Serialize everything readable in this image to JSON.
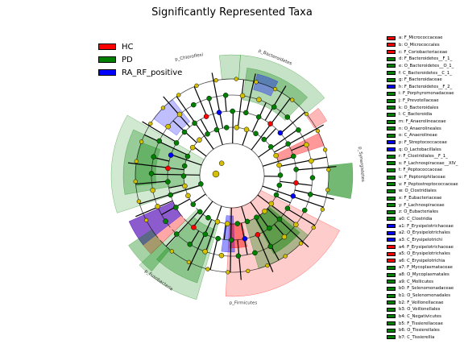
{
  "title": "Significantly Represented Taxa",
  "colors": {
    "HC": "#ff0000",
    "PD": "#008000",
    "RA_RF_positive": "#0000ff",
    "nonsignificant": "#d4c000"
  },
  "legend": [
    {
      "label": "HC",
      "color": "#ff0000"
    },
    {
      "label": "PD",
      "color": "#008000"
    },
    {
      "label": "RA_RF_positive",
      "color": "#0000ff"
    }
  ],
  "chart_data": {
    "type": "cladogram",
    "groups": [
      "HC",
      "PD",
      "RA_RF_positive"
    ],
    "clade_labels": [
      {
        "text": "p_Chloroflexi",
        "group": "PD"
      },
      {
        "text": "p_Bacteroidetes",
        "group": "PD"
      },
      {
        "text": "p_Synergistetes",
        "group": "PD"
      },
      {
        "text": "p_Firmicutes",
        "group": "HC"
      },
      {
        "text": "p_Fusobacteria",
        "group": "PD"
      }
    ],
    "taxa": [
      {
        "text": "a: F_Micrococcaceae",
        "group": "HC"
      },
      {
        "text": "b: O_Micrococcales",
        "group": "HC"
      },
      {
        "text": "c: F_Coriobacteriaceae",
        "group": "HC"
      },
      {
        "text": "d: F_Bacteroidetes__F_1_",
        "group": "PD"
      },
      {
        "text": "e: O_Bacteroidetes__O_1_",
        "group": "PD"
      },
      {
        "text": "f: C_Bacteroidetes__C_1_",
        "group": "PD"
      },
      {
        "text": "g: F_Bacteroidaceae",
        "group": "PD"
      },
      {
        "text": "h: F_Bacteroidetes__F_2_",
        "group": "RA_RF_positive"
      },
      {
        "text": "i: F_Porphyromonadaceae",
        "group": "PD"
      },
      {
        "text": "j: F_Prevotellaceae",
        "group": "PD"
      },
      {
        "text": "k: O_Bacteroidales",
        "group": "PD"
      },
      {
        "text": "l: C_Bacteroidia",
        "group": "PD"
      },
      {
        "text": "m: F_Anaerolineaceae",
        "group": "PD"
      },
      {
        "text": "n: O_Anaerolineales",
        "group": "PD"
      },
      {
        "text": "o: C_Anaerolineae",
        "group": "PD"
      },
      {
        "text": "p: F_Streptococcaceae",
        "group": "RA_RF_positive"
      },
      {
        "text": "q: O_Lactobacillales",
        "group": "RA_RF_positive"
      },
      {
        "text": "r: F_Clostridiales__F_1_",
        "group": "PD"
      },
      {
        "text": "s: F_Lachnospiraceae__XIV_",
        "group": "PD"
      },
      {
        "text": "t: F_Peptococcaceae",
        "group": "PD"
      },
      {
        "text": "u: F_Peptoniphilaceae",
        "group": "PD"
      },
      {
        "text": "v: F_Peptostreptococcaceae",
        "group": "PD"
      },
      {
        "text": "w: O_Clostridiales",
        "group": "PD"
      },
      {
        "text": "x: F_Eubacteriaceae",
        "group": "PD"
      },
      {
        "text": "y: F_Lachnospiraceae",
        "group": "PD"
      },
      {
        "text": "z: O_Eubacteriales",
        "group": "PD"
      },
      {
        "text": "a0: C_Clostridia",
        "group": "PD"
      },
      {
        "text": "a1: F_Erysipelotrichaceae",
        "group": "RA_RF_positive"
      },
      {
        "text": "a2: O_Erysipelotrichales",
        "group": "RA_RF_positive"
      },
      {
        "text": "a3: C_Erysipelotrichi",
        "group": "RA_RF_positive"
      },
      {
        "text": "a4: F_Erysipelotrichaceae",
        "group": "HC"
      },
      {
        "text": "a5: O_Erysipelotrichales",
        "group": "HC"
      },
      {
        "text": "a6: C_Erysipelotrichia",
        "group": "HC"
      },
      {
        "text": "a7: F_Mycoplasmataceae",
        "group": "PD"
      },
      {
        "text": "a8: O_Mycoplasmatales",
        "group": "PD"
      },
      {
        "text": "a9: C_Mollicutes",
        "group": "PD"
      },
      {
        "text": "b0: F_Selenomonadaceae",
        "group": "PD"
      },
      {
        "text": "b1: O_Selenomonadales",
        "group": "PD"
      },
      {
        "text": "b2: F_Veillonellaceae",
        "group": "PD"
      },
      {
        "text": "b3: O_Veillonellales",
        "group": "PD"
      },
      {
        "text": "b4: C_Negativicutes",
        "group": "PD"
      },
      {
        "text": "b5: F_Tissierellaceae",
        "group": "PD"
      },
      {
        "text": "b6: O_Tissierellales",
        "group": "PD"
      },
      {
        "text": "b7: C_Tissierellia",
        "group": "PD"
      }
    ]
  }
}
